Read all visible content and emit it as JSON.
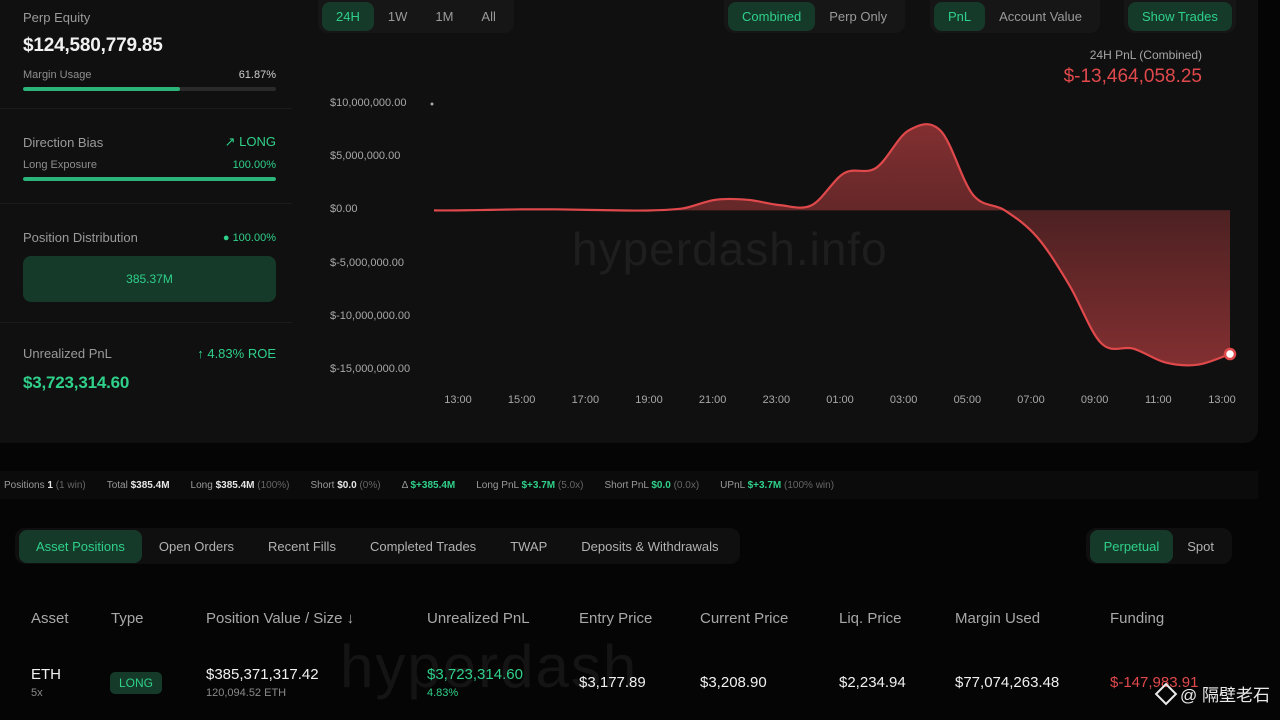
{
  "stats": {
    "perp_equity_label": "Perp Equity",
    "perp_equity_value": "$124,580,779.85",
    "margin_usage_label": "Margin Usage",
    "margin_usage_value": "61.87%",
    "margin_usage_fraction": 0.6187,
    "direction_bias_label": "Direction Bias",
    "direction_bias_value": "LONG",
    "long_exposure_label": "Long Exposure",
    "long_exposure_value": "100.00%",
    "long_exposure_fraction": 1.0,
    "position_distribution_label": "Position Distribution",
    "position_distribution_value": "100.00%",
    "distribution_bar_value": "385.37M",
    "unrealized_pnl_label": "Unrealized PnL",
    "roe_value": "4.83% ROE",
    "unrealized_pnl_value": "$3,723,314.60"
  },
  "range_tabs": [
    "24H",
    "1W",
    "1M",
    "All"
  ],
  "range_active": 0,
  "view_tabs": [
    "Combined",
    "Perp Only"
  ],
  "view_active": 0,
  "metric_tabs": [
    "PnL",
    "Account Value"
  ],
  "metric_active": 0,
  "show_trades_label": "Show Trades",
  "pnl_caption": "24H PnL (Combined)",
  "pnl_value": "$-13,464,058.25",
  "watermark": "hyperdash.info",
  "chart_data": {
    "type": "area",
    "title": "",
    "xlabel": "",
    "ylabel": "",
    "ylim": [
      -15000000,
      10000000
    ],
    "y_ticks": [
      10000000,
      5000000,
      0,
      -5000000,
      -10000000,
      -15000000
    ],
    "y_tick_labels": [
      "$10,000,000.00",
      "$5,000,000.00",
      "$0.00",
      "$-5,000,000.00",
      "$-10,000,000.00",
      "$-15,000,000.00"
    ],
    "x_tick_labels": [
      "13:00",
      "15:00",
      "17:00",
      "19:00",
      "21:00",
      "23:00",
      "01:00",
      "03:00",
      "05:00",
      "07:00",
      "09:00",
      "11:00",
      "13:00"
    ],
    "x_hours": [
      -0.75,
      0,
      1,
      2,
      3,
      4,
      5,
      6,
      7,
      8,
      9,
      10,
      11,
      12,
      13,
      14,
      15,
      16,
      17,
      18,
      19,
      20,
      21,
      22,
      23,
      24
    ],
    "values": [
      0,
      0,
      50000,
      100000,
      100000,
      50000,
      0,
      0,
      200000,
      1000000,
      1000000,
      500000,
      500000,
      3500000,
      4000000,
      7500000,
      7500000,
      1500000,
      0,
      -2500000,
      -7000000,
      -12500000,
      -13000000,
      -14300000,
      -14500000,
      -13500000
    ],
    "grid": false,
    "legend": "none",
    "line_color": "#e0494c"
  },
  "summary": [
    {
      "label": "Positions",
      "value": "1",
      "extra": "(1 win)"
    },
    {
      "label": "Total",
      "value": "$385.4M",
      "extra": ""
    },
    {
      "label": "Long",
      "value": "$385.4M",
      "extra": "(100%)"
    },
    {
      "label": "Short",
      "value": "$0.0",
      "extra": "(0%)"
    },
    {
      "label": "Δ",
      "value": "$+385.4M",
      "extra": "",
      "green": true
    },
    {
      "label": "Long PnL",
      "value": "$+3.7M",
      "extra": "(5.0x)",
      "green": true
    },
    {
      "label": "Short PnL",
      "value": "$0.0",
      "extra": "(0.0x)",
      "green": true
    },
    {
      "label": "UPnL",
      "value": "$+3.7M",
      "extra": "(100% win)",
      "green": true
    }
  ],
  "tabs": [
    "Asset Positions",
    "Open Orders",
    "Recent Fills",
    "Completed Trades",
    "TWAP",
    "Deposits & Withdrawals"
  ],
  "tab_active": 0,
  "market_tabs": [
    "Perpetual",
    "Spot"
  ],
  "market_active": 0,
  "table": {
    "headers": [
      "Asset",
      "Type",
      "Position Value / Size ↓",
      "Unrealized PnL",
      "Entry Price",
      "Current Price",
      "Liq. Price",
      "Margin Used",
      "Funding"
    ],
    "row": {
      "asset": "ETH",
      "leverage": "5x",
      "type": "LONG",
      "position_value": "$385,371,317.42",
      "position_size": "120,094.52 ETH",
      "unrealized_pnl": "$3,723,314.60",
      "unrealized_pct": "4.83%",
      "entry_price": "$3,177.89",
      "current_price": "$3,208.90",
      "liq_price": "$2,234.94",
      "margin_used": "$77,074,263.48",
      "funding": "$-147,983.91"
    }
  },
  "table_watermark": "hyperdash",
  "credit": "@ 隔壁老石",
  "colors": {
    "accent_green": "#2fd08a",
    "negative_red": "#e0494c",
    "panel": "#101010"
  }
}
